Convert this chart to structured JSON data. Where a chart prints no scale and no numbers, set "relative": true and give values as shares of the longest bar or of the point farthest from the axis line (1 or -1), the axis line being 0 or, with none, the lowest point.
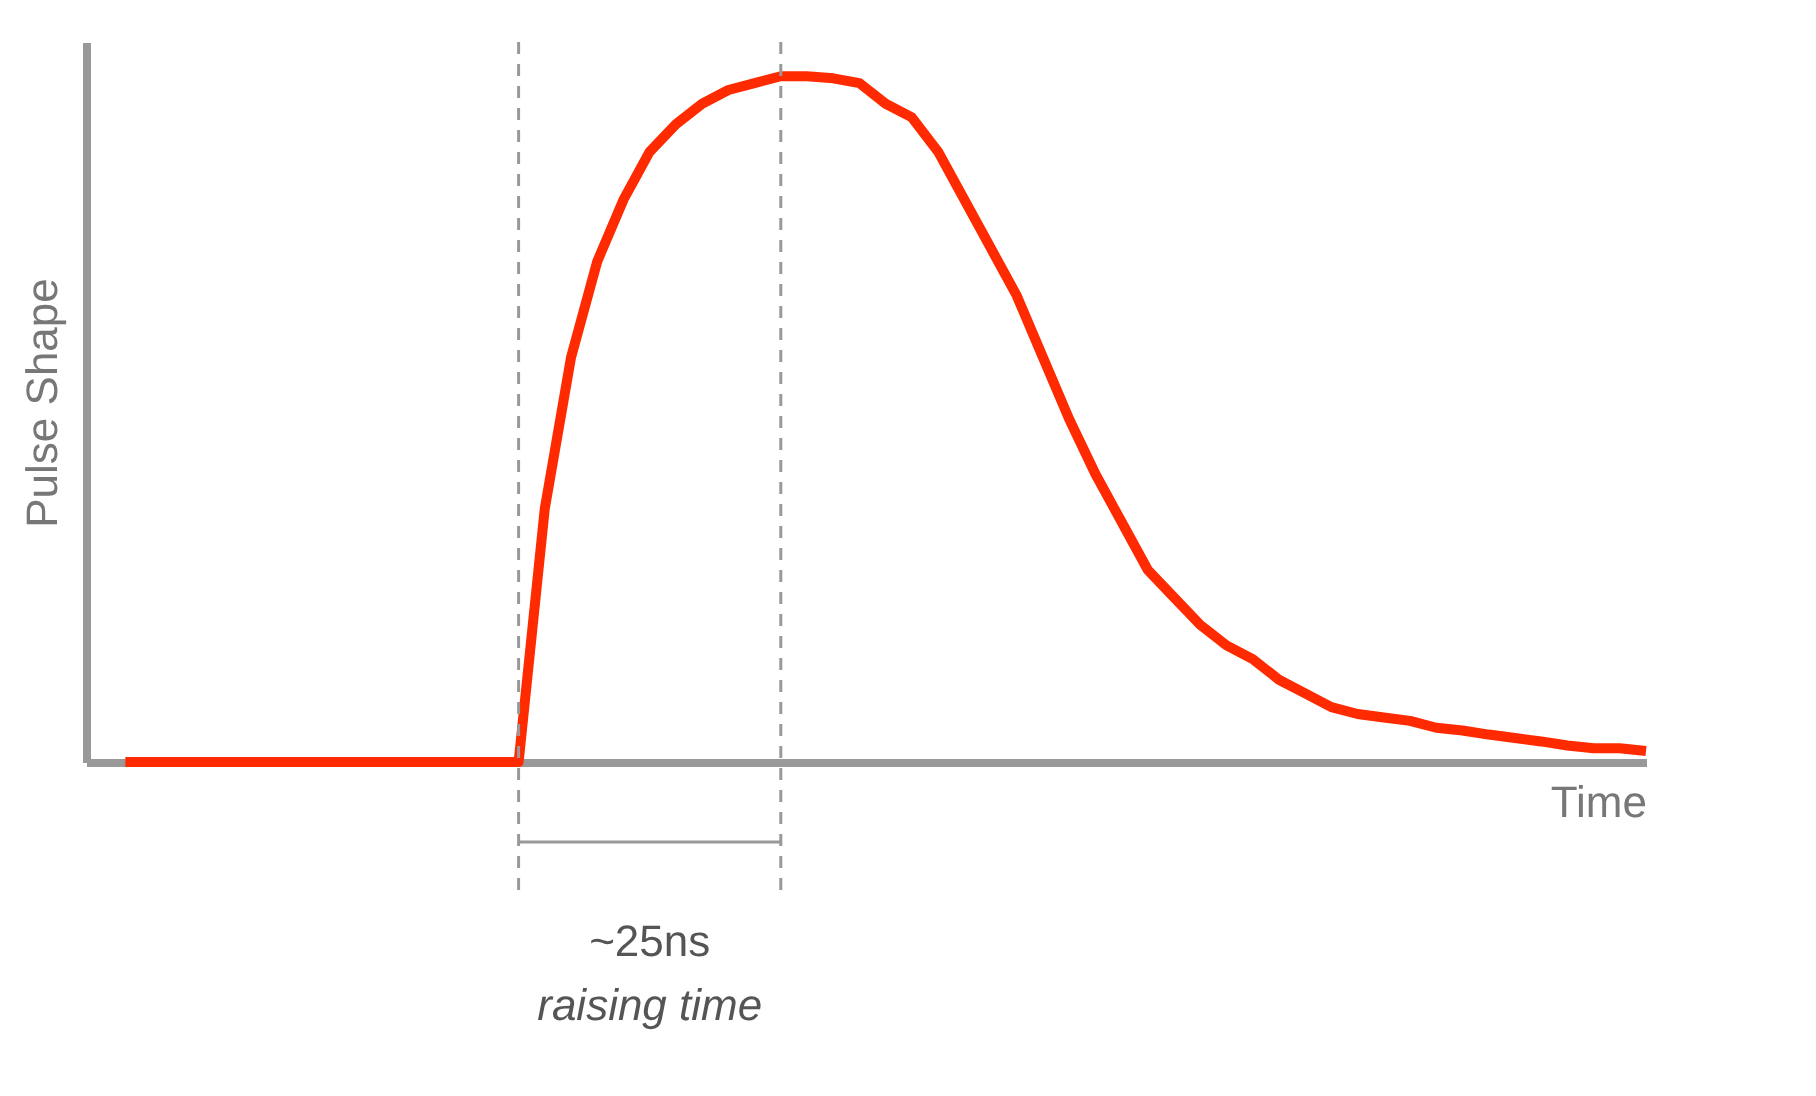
{
  "chart_data": {
    "type": "line",
    "relative": true,
    "xlabel": "Time",
    "ylabel": "Pulse Shape",
    "categories": [
      null,
      null,
      null,
      null,
      null,
      null,
      null,
      null,
      null,
      null,
      null,
      null,
      null,
      null,
      null,
      null,
      null,
      null,
      null,
      null,
      null,
      null,
      null,
      null,
      null,
      null,
      null,
      null,
      null,
      null,
      null,
      null,
      null,
      null,
      null,
      null,
      null,
      null,
      null,
      null,
      null,
      null,
      null,
      null,
      null,
      null,
      null,
      null,
      null,
      null,
      null,
      null,
      null,
      null,
      null,
      null,
      null,
      null,
      null
    ],
    "series": [
      {
        "color": "#ff2a00",
        "values": [
          0,
          0,
          0,
          0,
          0,
          0,
          0,
          0,
          0,
          0,
          0,
          0,
          0,
          0,
          0,
          0,
          0.37,
          0.59,
          0.73,
          0.82,
          0.89,
          0.93,
          0.96,
          0.98,
          0.99,
          1.0,
          1.0,
          0.997,
          0.99,
          0.96,
          0.94,
          0.89,
          0.82,
          0.75,
          0.68,
          0.59,
          0.5,
          0.42,
          0.35,
          0.28,
          0.24,
          0.2,
          0.17,
          0.15,
          0.12,
          0.1,
          0.08,
          0.07,
          0.065,
          0.06,
          0.05,
          0.046,
          0.04,
          0.035,
          0.03,
          0.024,
          0.02,
          0.02,
          0.016
        ]
      }
    ],
    "annotations": [
      "~25ns",
      "raising time"
    ],
    "marker": "none",
    "grid": false,
    "tick_labels": false
  }
}
